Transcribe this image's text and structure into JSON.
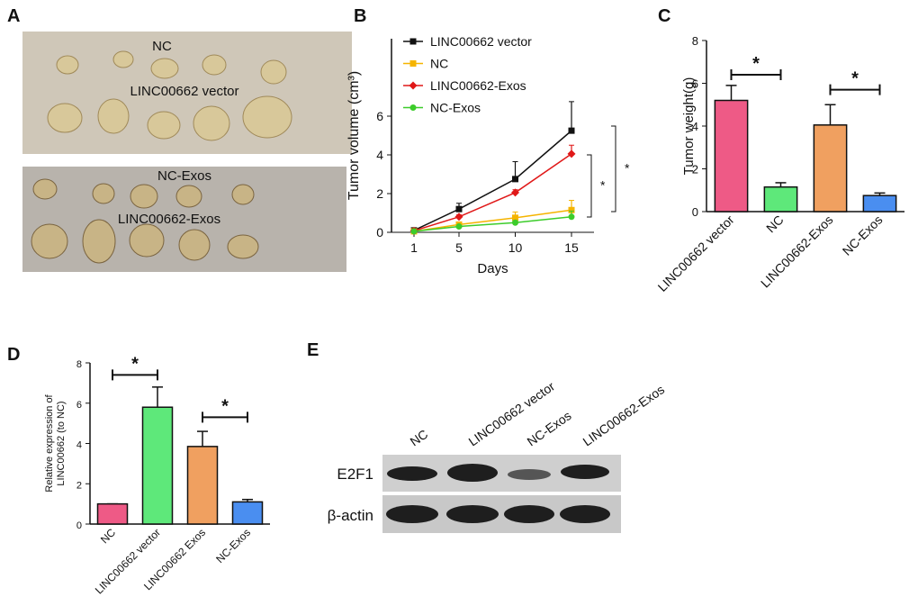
{
  "panel_labels": [
    "A",
    "B",
    "C",
    "D",
    "E"
  ],
  "photo": {
    "top_labels": [
      "NC",
      "LINC00662 vector"
    ],
    "bottom_labels": [
      "NC-Exos",
      "LINC00662-Exos"
    ]
  },
  "chart_data": [
    {
      "type": "line",
      "ylabel": "Tumor volume (cm³)",
      "xlabel": "Days",
      "x": [
        1,
        5,
        10,
        15
      ],
      "xlim": [
        -1,
        17
      ],
      "xticks": [
        1,
        5,
        10,
        15
      ],
      "ylim": [
        0,
        10
      ],
      "yticks": [
        0,
        2,
        4,
        6
      ],
      "series": [
        {
          "name": "LINC00662 vector",
          "color": "#111111",
          "marker": "square",
          "values": [
            0.1,
            1.2,
            2.75,
            5.25
          ],
          "errors": [
            0.05,
            0.3,
            0.9,
            1.5
          ]
        },
        {
          "name": "NC",
          "color": "#f5b400",
          "marker": "square",
          "values": [
            0.05,
            0.4,
            0.75,
            1.15
          ],
          "errors": [
            0.02,
            0.1,
            0.3,
            0.5
          ]
        },
        {
          "name": "LINC00662-Exos",
          "color": "#e01818",
          "marker": "diamond",
          "values": [
            0.08,
            0.8,
            2.05,
            4.05
          ],
          "errors": [
            0.05,
            0.1,
            0.15,
            0.45
          ]
        },
        {
          "name": "NC-Exos",
          "color": "#3ccc2a",
          "marker": "circle",
          "values": [
            0.05,
            0.3,
            0.5,
            0.8
          ],
          "errors": [
            0.02,
            0.05,
            0.1,
            0.3
          ]
        }
      ],
      "annotations": [
        "*",
        "*"
      ]
    },
    {
      "type": "bar",
      "ylabel": "Tumor weight(g)",
      "categories": [
        "LINC00662 vector",
        "NC",
        "LINC00662-Exos",
        "NC-Exos"
      ],
      "values": [
        5.2,
        1.15,
        4.05,
        0.75
      ],
      "errors": [
        0.7,
        0.2,
        0.95,
        0.12
      ],
      "colors": [
        "#ee5a86",
        "#5ee87a",
        "#f0a060",
        "#4a8ef0"
      ],
      "ylim": [
        0,
        8
      ],
      "yticks": [
        0,
        2,
        4,
        6,
        8
      ],
      "annotations": [
        "*",
        "*"
      ]
    },
    {
      "type": "bar",
      "ylabel": [
        "Relative expression of",
        "LINC00662 (to NC)"
      ],
      "categories": [
        "NC",
        "LINC00662 vector",
        "LINC00662 Exos",
        "NC-Exos"
      ],
      "values": [
        1.0,
        5.8,
        3.85,
        1.1
      ],
      "errors": [
        0,
        1.0,
        0.75,
        0.12
      ],
      "colors": [
        "#ee5a86",
        "#5ee87a",
        "#f0a060",
        "#4a8ef0"
      ],
      "ylim": [
        0,
        8
      ],
      "yticks": [
        0,
        2,
        4,
        6,
        8
      ],
      "annotations": [
        "*",
        "*"
      ]
    }
  ],
  "blot": {
    "lanes": [
      "NC",
      "LINC00662 vector",
      "NC-Exos",
      "LINC00662-Exos"
    ],
    "rows": [
      "E2F1",
      "β-actin"
    ]
  }
}
